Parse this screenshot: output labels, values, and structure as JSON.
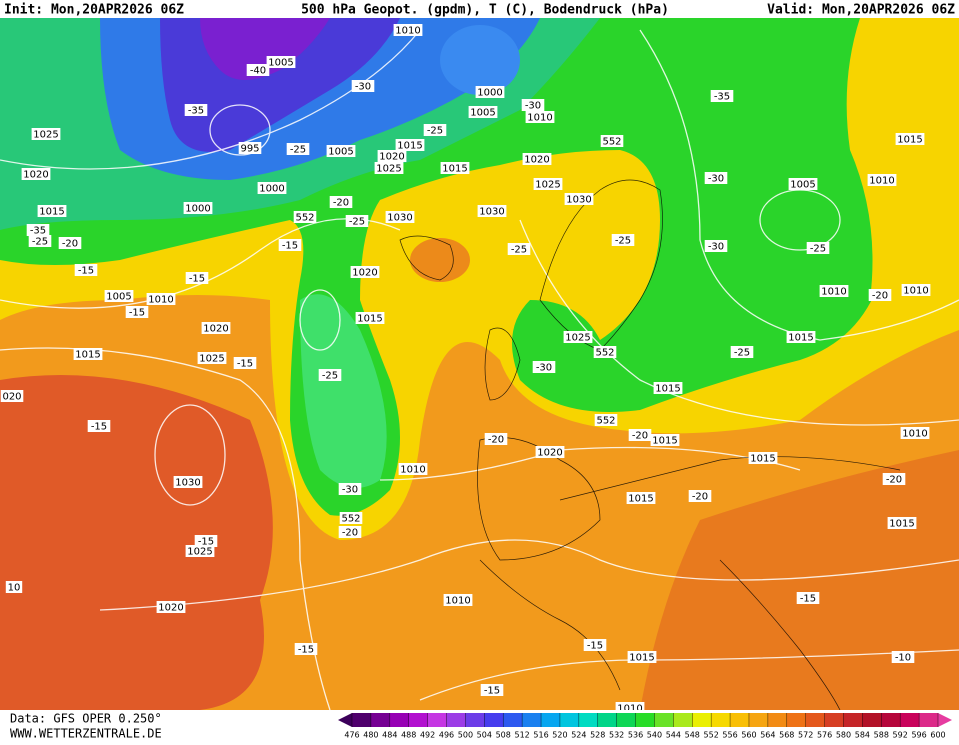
{
  "header": {
    "init": "Init: Mon,20APR2026 06Z",
    "title": "500 hPa Geopot. (gpdm), T (C), Bodendruck (hPa)",
    "valid": "Valid: Mon,20APR2026 06Z"
  },
  "footer": {
    "source": "Data: GFS OPER 0.250°",
    "website": "WWW.WETTERZENTRALE.DE"
  },
  "colorbar": {
    "ticks": [
      476,
      480,
      484,
      488,
      492,
      496,
      500,
      504,
      508,
      512,
      516,
      520,
      524,
      528,
      532,
      536,
      540,
      544,
      548,
      552,
      556,
      560,
      564,
      568,
      572,
      576,
      580,
      584,
      588,
      592,
      596,
      600
    ]
  },
  "map": {
    "labels": [
      "1010",
      "1005",
      "-40",
      "-30",
      "1000",
      "-35",
      "1005",
      "-30",
      "1010",
      "-35",
      "995",
      "-25",
      "1005",
      "1015",
      "-25",
      "1020",
      "552",
      "1025",
      "1020",
      "1025",
      "1015",
      "1020",
      "1015",
      "1000",
      "1025",
      "1030",
      "-30",
      "1005",
      "1010",
      "1015",
      "1000",
      "-20",
      "1030",
      "1030",
      "552",
      "-25",
      "-25",
      "-30",
      "-25",
      "-35",
      "-25",
      "-20",
      "-15",
      "-25",
      "-15",
      "1020",
      "-15",
      "1005",
      "1010",
      "1010",
      "-20",
      "1010",
      "-15",
      "1015",
      "1020",
      "1025",
      "552",
      "1015",
      "-25",
      "1015",
      "1025",
      "-15",
      "-25",
      "-30",
      "1015",
      "020",
      "-15",
      "552",
      "-20",
      "1015",
      "-20",
      "1020",
      "1010",
      "1015",
      "1010",
      "1030",
      "-20",
      "-30",
      "1015",
      "-20",
      "552",
      "-20",
      "-15",
      "1025",
      "1015",
      "10",
      "1020",
      "1010",
      "-15",
      "-15",
      "-15",
      "1015",
      "-10",
      "-15",
      "1010"
    ]
  }
}
